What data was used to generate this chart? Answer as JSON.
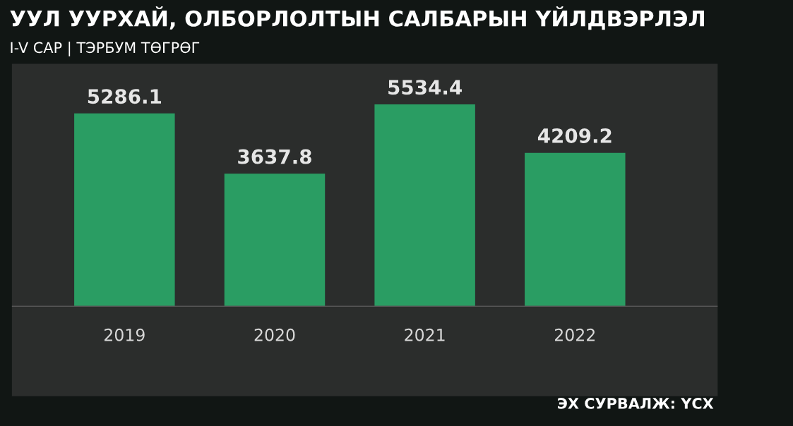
{
  "chart_data": {
    "type": "bar",
    "title": "УУЛ УУРХАЙ, ОЛБОРЛОЛТЫН САЛБАРЫН ҮЙЛДВЭРЛЭЛ",
    "subtitle": "I-V САР | ТЭРБУМ ТӨГРӨГ",
    "categories": [
      "2019",
      "2020",
      "2021",
      "2022"
    ],
    "values": [
      5286.1,
      3637.8,
      5534.4,
      4209.2
    ],
    "color": "#2a9d63",
    "data_labels": true,
    "annotations": [
      "ЭХ СУРВАЛЖ: ҮСХ"
    ]
  }
}
